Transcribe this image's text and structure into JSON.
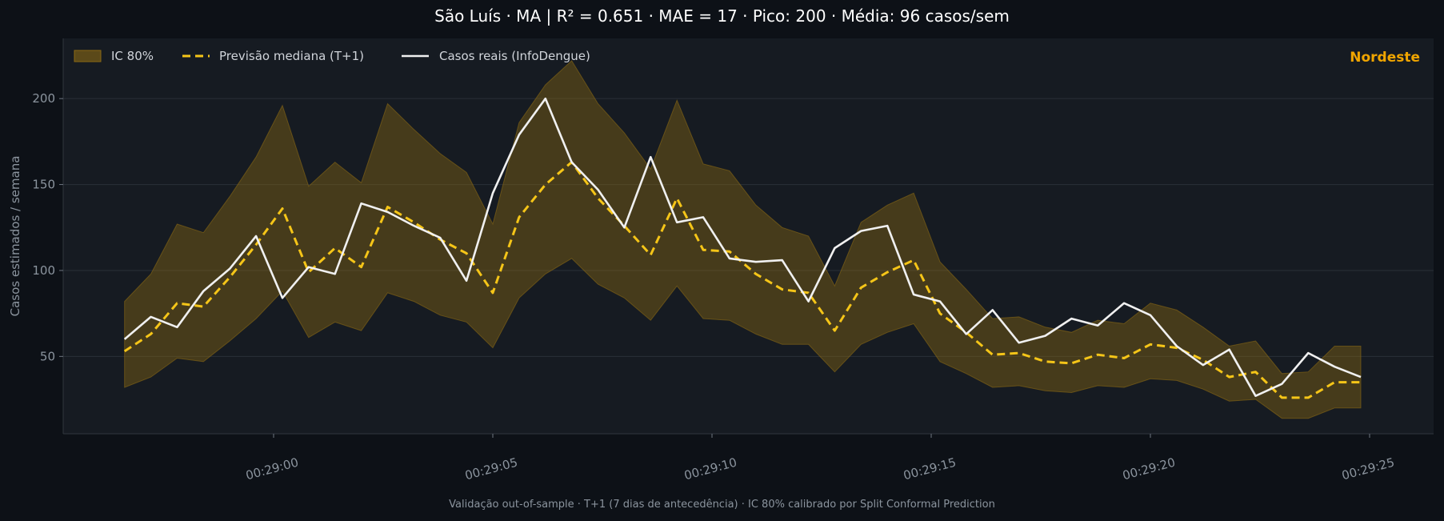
{
  "title": "São Luís · MA   |   R² = 0.651  ·  MAE = 17  ·  Pico: 200  ·  Média: 96 casos/sem",
  "footer": "Validação out-of-sample · T+1 (7 dias de antecedência) · IC 80% calibrado por Split Conformal Prediction",
  "colors": {
    "background": "#0d1117",
    "plot_bg": "#161b22",
    "band": "#8b6914",
    "forecast": "#f5c518",
    "actual": "#f0f0f0",
    "region": "#f0a500",
    "axis_text": "#8b949e"
  },
  "chart_data": {
    "type": "line",
    "region_label": "Nordeste",
    "ylabel": "Casos estimados / semana",
    "xlabel": "",
    "x_ticks": [
      "00:29:00",
      "00:29:05",
      "00:29:10",
      "00:29:15",
      "00:29:20",
      "00:29:25"
    ],
    "x_tick_seconds": [
      0,
      5,
      10,
      15,
      20,
      25
    ],
    "x_seconds": [
      -3.4,
      -2.8,
      -2.2,
      -1.6,
      -1.0,
      -0.4,
      0.2,
      0.8,
      1.4,
      2.0,
      2.6,
      3.2,
      3.8,
      4.4,
      5.0,
      5.6,
      6.2,
      6.8,
      7.4,
      8.0,
      8.6,
      9.2,
      9.8,
      10.4,
      11.0,
      11.6,
      12.2,
      12.8,
      13.4,
      14.0,
      14.6,
      15.2,
      15.8,
      16.4,
      17.0,
      17.6,
      18.2,
      18.8,
      19.4,
      20.0,
      20.6,
      21.2,
      21.8,
      22.4,
      23.0,
      23.6,
      24.2,
      24.8
    ],
    "y_ticks": [
      50,
      100,
      150,
      200
    ],
    "ylim": [
      5,
      235
    ],
    "legend_position": "top-left",
    "grid": true,
    "series": [
      {
        "name": "IC 80%",
        "kind": "band",
        "lower": [
          32,
          38,
          49,
          47,
          59,
          72,
          88,
          61,
          70,
          65,
          87,
          82,
          74,
          70,
          55,
          84,
          98,
          107,
          92,
          84,
          71,
          91,
          72,
          71,
          63,
          57,
          57,
          41,
          57,
          64,
          69,
          47,
          40,
          32,
          33,
          30,
          29,
          33,
          32,
          37,
          36,
          31,
          24,
          25,
          14,
          14,
          20,
          20
        ],
        "upper": [
          82,
          98,
          127,
          122,
          143,
          166,
          196,
          149,
          163,
          151,
          197,
          182,
          168,
          157,
          127,
          186,
          208,
          222,
          197,
          180,
          159,
          199,
          162,
          158,
          138,
          125,
          120,
          91,
          128,
          138,
          145,
          105,
          89,
          72,
          73,
          67,
          64,
          71,
          69,
          81,
          77,
          67,
          56,
          59,
          40,
          41,
          56,
          56
        ]
      },
      {
        "name": "Previsão mediana (T+1)",
        "kind": "line-dashed",
        "values": [
          53,
          63,
          81,
          79,
          96,
          115,
          136,
          99,
          113,
          102,
          137,
          128,
          118,
          110,
          87,
          131,
          150,
          163,
          142,
          126,
          109,
          142,
          112,
          111,
          98,
          89,
          87,
          65,
          90,
          99,
          106,
          75,
          64,
          51,
          52,
          47,
          46,
          51,
          49,
          57,
          55,
          48,
          38,
          41,
          26,
          26,
          35,
          35
        ]
      },
      {
        "name": "Casos reais (InfoDengue)",
        "kind": "line",
        "values": [
          60,
          73,
          67,
          88,
          101,
          120,
          84,
          102,
          98,
          139,
          134,
          126,
          119,
          94,
          145,
          179,
          200,
          163,
          147,
          125,
          166,
          128,
          131,
          107,
          105,
          106,
          82,
          113,
          123,
          126,
          86,
          82,
          63,
          77,
          58,
          62,
          72,
          68,
          81,
          74,
          56,
          45,
          54,
          27,
          34,
          52,
          44,
          38
        ]
      }
    ]
  }
}
